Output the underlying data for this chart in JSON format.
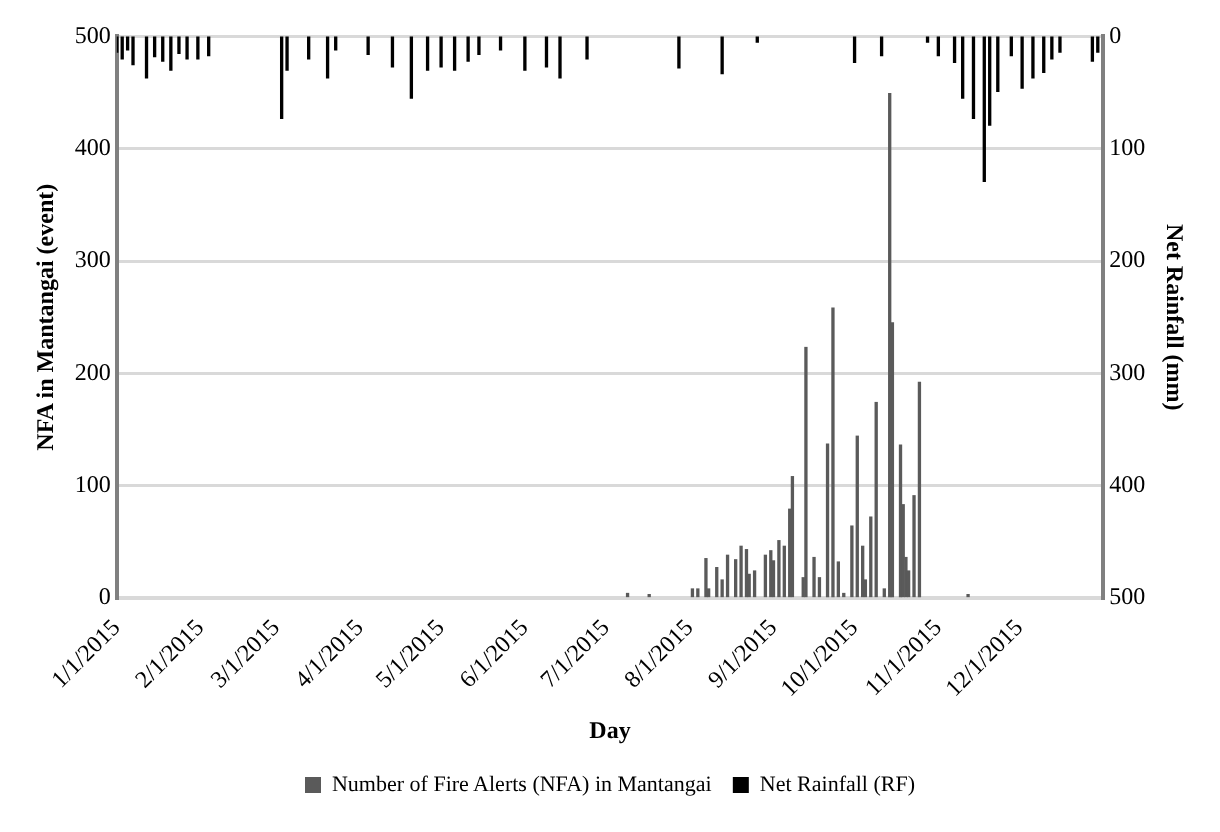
{
  "chart_data": {
    "type": "bar",
    "xlabel": "Day",
    "ylabel": "NFA in Mantangai (event)",
    "y2label": "Net Rainfall (mm)",
    "xlim": [
      "2015-01-01",
      "2016-01-01"
    ],
    "xticks": [
      {
        "value": "2015-01-01",
        "label": "1/1/2015"
      },
      {
        "value": "2015-02-01",
        "label": "2/1/2015"
      },
      {
        "value": "2015-03-01",
        "label": "3/1/2015"
      },
      {
        "value": "2015-04-01",
        "label": "4/1/2015"
      },
      {
        "value": "2015-05-01",
        "label": "5/1/2015"
      },
      {
        "value": "2015-06-01",
        "label": "6/1/2015"
      },
      {
        "value": "2015-07-01",
        "label": "7/1/2015"
      },
      {
        "value": "2015-08-01",
        "label": "8/1/2015"
      },
      {
        "value": "2015-09-01",
        "label": "9/1/2015"
      },
      {
        "value": "2015-10-01",
        "label": "10/1/2015"
      },
      {
        "value": "2015-11-01",
        "label": "11/1/2015"
      },
      {
        "value": "2015-12-01",
        "label": "12/1/2015"
      }
    ],
    "ylim": [
      0,
      500
    ],
    "yticks": [
      0,
      100,
      200,
      300,
      400,
      500
    ],
    "y2lim": [
      500,
      0
    ],
    "y2ticks": [
      0,
      100,
      200,
      300,
      400,
      500
    ],
    "grid": "y",
    "legend": "bottom",
    "series": [
      {
        "name": "Number of Fire Alerts (NFA) in Mantangai",
        "color": "#5a5a5a",
        "x": [
          "2015-07-09",
          "2015-07-17",
          "2015-08-02",
          "2015-08-04",
          "2015-08-07",
          "2015-08-08",
          "2015-08-11",
          "2015-08-13",
          "2015-08-15",
          "2015-08-18",
          "2015-08-20",
          "2015-08-22",
          "2015-08-23",
          "2015-08-25",
          "2015-08-29",
          "2015-08-31",
          "2015-09-01",
          "2015-09-03",
          "2015-09-05",
          "2015-09-07",
          "2015-09-08",
          "2015-09-12",
          "2015-09-13",
          "2015-09-16",
          "2015-09-18",
          "2015-09-21",
          "2015-09-23",
          "2015-09-25",
          "2015-09-27",
          "2015-09-30",
          "2015-10-02",
          "2015-10-04",
          "2015-10-05",
          "2015-10-07",
          "2015-10-09",
          "2015-10-12",
          "2015-10-14",
          "2015-10-15",
          "2015-10-18",
          "2015-10-19",
          "2015-10-20",
          "2015-10-21",
          "2015-10-23",
          "2015-10-25",
          "2015-11-12"
        ],
        "values": [
          4,
          3,
          8,
          8,
          35,
          8,
          27,
          16,
          38,
          34,
          46,
          43,
          21,
          24,
          38,
          42,
          33,
          51,
          46,
          79,
          108,
          18,
          223,
          36,
          18,
          137,
          258,
          32,
          4,
          64,
          144,
          46,
          16,
          72,
          174,
          8,
          449,
          245,
          136,
          83,
          36,
          24,
          91,
          192,
          3
        ]
      },
      {
        "name": "Net Rainfall (RF)",
        "color": "#000000",
        "axis": "y2",
        "x": [
          "2015-01-01",
          "2015-01-03",
          "2015-01-05",
          "2015-01-07",
          "2015-01-12",
          "2015-01-15",
          "2015-01-18",
          "2015-01-21",
          "2015-01-24",
          "2015-01-27",
          "2015-01-31",
          "2015-02-04",
          "2015-03-03",
          "2015-03-05",
          "2015-03-13",
          "2015-03-20",
          "2015-03-23",
          "2015-04-04",
          "2015-04-13",
          "2015-04-20",
          "2015-04-26",
          "2015-05-01",
          "2015-05-06",
          "2015-05-11",
          "2015-05-15",
          "2015-05-23",
          "2015-06-01",
          "2015-06-09",
          "2015-06-14",
          "2015-06-24",
          "2015-07-28",
          "2015-08-13",
          "2015-08-26",
          "2015-10-01",
          "2015-10-11",
          "2015-10-28",
          "2015-11-01",
          "2015-11-07",
          "2015-11-10",
          "2015-11-14",
          "2015-11-18",
          "2015-11-20",
          "2015-11-23",
          "2015-11-28",
          "2015-12-02",
          "2015-12-06",
          "2015-12-10",
          "2015-12-13",
          "2015-12-16",
          "2015-12-28",
          "2015-12-30"
        ],
        "values": [
          14,
          20,
          12,
          25,
          37,
          18,
          22,
          30,
          15,
          20,
          20,
          17,
          73,
          30,
          20,
          37,
          12,
          16,
          27,
          55,
          30,
          27,
          30,
          22,
          16,
          12,
          30,
          27,
          37,
          20,
          28,
          33,
          5,
          23,
          17,
          5,
          17,
          23,
          55,
          73,
          129,
          79,
          49,
          17,
          46,
          37,
          32,
          20,
          14,
          22,
          14
        ]
      }
    ]
  }
}
